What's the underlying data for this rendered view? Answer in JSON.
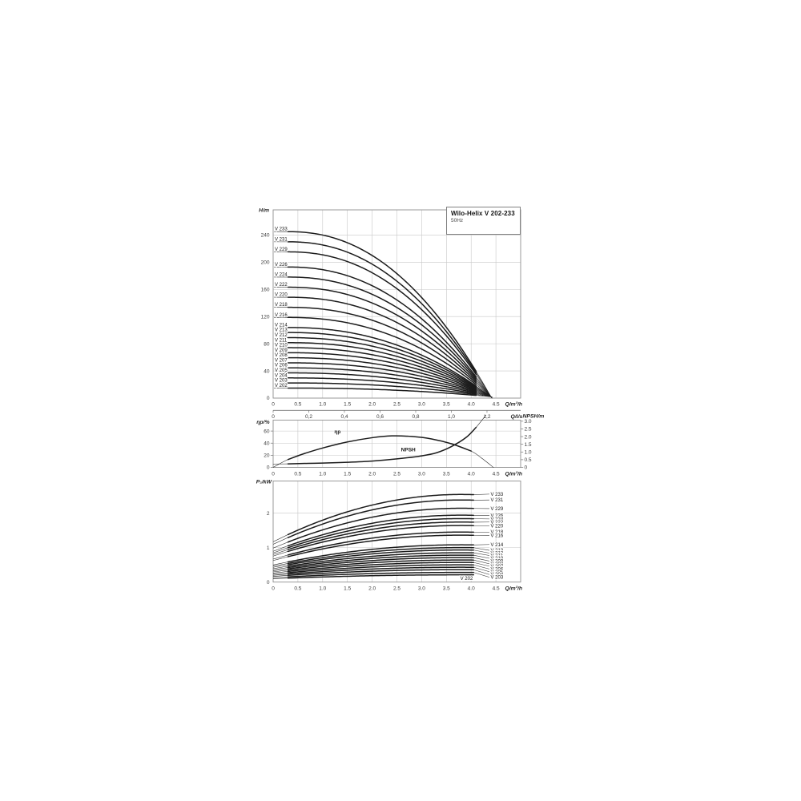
{
  "page": {
    "background": "#ffffff"
  },
  "title_box": {
    "title": "Wilo-Helix V 202-233",
    "subtitle": "50Hz"
  },
  "colors": {
    "curve": "#1b1b1b",
    "grid": "#c7c7c7",
    "axis_border": "#8f8f8f",
    "tick_text": "#3a3a3a",
    "label_text": "#161616",
    "background": "#ffffff"
  },
  "chart_data": [
    {
      "id": "head-curves",
      "type": "line",
      "title": "Wilo-Helix V 202-233",
      "subtitle": "50Hz",
      "ylabel": "H/m",
      "xlabel": "Q/m³/h",
      "xlabel2": "Q/l/s",
      "xlim": [
        0,
        5.0
      ],
      "ylim": [
        0,
        277
      ],
      "grid": true,
      "yticks": [
        {
          "v": 0,
          "label": "0"
        },
        {
          "v": 40,
          "label": "40"
        },
        {
          "v": 80,
          "label": "80"
        },
        {
          "v": 120,
          "label": "120"
        },
        {
          "v": 160,
          "label": "160"
        },
        {
          "v": 200,
          "label": "200"
        },
        {
          "v": 240,
          "label": "240"
        }
      ],
      "xticks": [
        {
          "v": 0,
          "label": "0"
        },
        {
          "v": 0.5,
          "label": "0.5"
        },
        {
          "v": 1,
          "label": "1.0"
        },
        {
          "v": 1.5,
          "label": "1.5"
        },
        {
          "v": 2,
          "label": "2.0"
        },
        {
          "v": 2.5,
          "label": "2.5"
        },
        {
          "v": 3,
          "label": "3.0"
        },
        {
          "v": 3.5,
          "label": "3.5"
        },
        {
          "v": 4,
          "label": "4.0"
        },
        {
          "v": 4.5,
          "label": "4.5"
        }
      ],
      "x2_unit_factor_m3h_per_ls": 3.6,
      "x2ticks": [
        {
          "v": 0,
          "label": "0"
        },
        {
          "v": 0.2,
          "label": "0,2"
        },
        {
          "v": 0.4,
          "label": "0,4"
        },
        {
          "v": 0.6,
          "label": "0,6"
        },
        {
          "v": 0.8,
          "label": "0,8"
        },
        {
          "v": 1.0,
          "label": "1,0"
        },
        {
          "v": 1.2,
          "label": "1,2"
        }
      ],
      "curve_model": {
        "q_start": 0.3,
        "q_thick_end": 4.1,
        "q_end": 4.42,
        "converge_q": 4.4,
        "converge_h": 2,
        "exponent": 2.2,
        "label_line_q0": 0.02
      },
      "series": [
        {
          "name": "V 233",
          "shutoff_head_m": 244.9
        },
        {
          "name": "V 231",
          "shutoff_head_m": 230.0
        },
        {
          "name": "V 229",
          "shutoff_head_m": 215.2
        },
        {
          "name": "V 226",
          "shutoff_head_m": 192.9
        },
        {
          "name": "V 224",
          "shutoff_head_m": 178.1
        },
        {
          "name": "V 222",
          "shutoff_head_m": 163.2
        },
        {
          "name": "V 220",
          "shutoff_head_m": 148.4
        },
        {
          "name": "V 218",
          "shutoff_head_m": 133.6
        },
        {
          "name": "V 216",
          "shutoff_head_m": 118.7
        },
        {
          "name": "V 214",
          "shutoff_head_m": 103.9
        },
        {
          "name": "V 213",
          "shutoff_head_m": 96.5
        },
        {
          "name": "V 212",
          "shutoff_head_m": 89.0
        },
        {
          "name": "V 211",
          "shutoff_head_m": 81.6
        },
        {
          "name": "V 210",
          "shutoff_head_m": 74.2
        },
        {
          "name": "V 209",
          "shutoff_head_m": 66.8
        },
        {
          "name": "V 208",
          "shutoff_head_m": 59.4
        },
        {
          "name": "V 207",
          "shutoff_head_m": 51.9
        },
        {
          "name": "V 206",
          "shutoff_head_m": 44.5
        },
        {
          "name": "V 205",
          "shutoff_head_m": 37.1
        },
        {
          "name": "V 204",
          "shutoff_head_m": 29.7
        },
        {
          "name": "V 203",
          "shutoff_head_m": 22.3
        },
        {
          "name": "V 202",
          "shutoff_head_m": 14.8
        }
      ]
    },
    {
      "id": "efficiency-npsh",
      "type": "line",
      "ylabel_left": "ηp/%",
      "ylabel_right": "NPSH/m",
      "xlabel": "Q/m³/h",
      "xlim": [
        0,
        5.0
      ],
      "ylim_left": [
        0,
        78
      ],
      "ylim_right": [
        0,
        3.07
      ],
      "grid": true,
      "yticks_left": [
        {
          "v": 0,
          "label": "0"
        },
        {
          "v": 20,
          "label": "20"
        },
        {
          "v": 40,
          "label": "40"
        },
        {
          "v": 60,
          "label": "60"
        }
      ],
      "yticks_right": [
        {
          "v": 0,
          "label": "0"
        },
        {
          "v": 0.5,
          "label": "0.5"
        },
        {
          "v": 1,
          "label": "1.0"
        },
        {
          "v": 1.5,
          "label": "1.5"
        },
        {
          "v": 2,
          "label": "2.0"
        },
        {
          "v": 2.5,
          "label": "2.5"
        },
        {
          "v": 3,
          "label": "3.0"
        }
      ],
      "xticks": [
        {
          "v": 0,
          "label": "0"
        },
        {
          "v": 0.5,
          "label": "0.5"
        },
        {
          "v": 1,
          "label": "1.0"
        },
        {
          "v": 1.5,
          "label": "1.5"
        },
        {
          "v": 2,
          "label": "2.0"
        },
        {
          "v": 2.5,
          "label": "2.5"
        },
        {
          "v": 3,
          "label": "3.0"
        },
        {
          "v": 3.5,
          "label": "3.5"
        },
        {
          "v": 4,
          "label": "4.0"
        },
        {
          "v": 4.5,
          "label": "4.5"
        }
      ],
      "series": [
        {
          "name": "ηp",
          "axis": "left",
          "points": [
            [
              0,
              0
            ],
            [
              0.3,
              13
            ],
            [
              0.6,
              22
            ],
            [
              1,
              32
            ],
            [
              1.5,
              42
            ],
            [
              2,
              49
            ],
            [
              2.4,
              52
            ],
            [
              2.8,
              51
            ],
            [
              3.2,
              47
            ],
            [
              3.6,
              39
            ],
            [
              4,
              27
            ],
            [
              4.2,
              16
            ],
            [
              4.45,
              0
            ]
          ],
          "thick": [
            0.3,
            4.0
          ],
          "label": {
            "q": 1.3,
            "v": 56
          }
        },
        {
          "name": "NPSH",
          "axis": "right",
          "points": [
            [
              0,
              0.22
            ],
            [
              0.3,
              0.23
            ],
            [
              0.7,
              0.26
            ],
            [
              1,
              0.28
            ],
            [
              1.5,
              0.33
            ],
            [
              2,
              0.41
            ],
            [
              2.5,
              0.55
            ],
            [
              3,
              0.75
            ],
            [
              3.3,
              0.95
            ],
            [
              3.6,
              1.35
            ],
            [
              3.9,
              1.95
            ],
            [
              4.1,
              2.6
            ],
            [
              4.3,
              3.4
            ]
          ],
          "thick": [
            0.3,
            4.1
          ],
          "label": {
            "q": 2.73,
            "v": 1.05
          }
        }
      ]
    },
    {
      "id": "power",
      "type": "line",
      "ylabel": "P₂/kW",
      "xlabel": "Q/m³/h",
      "xlim": [
        0,
        5.0
      ],
      "ylim": [
        0,
        2.93
      ],
      "grid": true,
      "yticks": [
        {
          "v": 0,
          "label": "0"
        },
        {
          "v": 1,
          "label": "1"
        },
        {
          "v": 2,
          "label": "2"
        }
      ],
      "xticks": [
        {
          "v": 0,
          "label": "0"
        },
        {
          "v": 0.5,
          "label": "0.5"
        },
        {
          "v": 1,
          "label": "1.0"
        },
        {
          "v": 1.5,
          "label": "1.5"
        },
        {
          "v": 2,
          "label": "2.0"
        },
        {
          "v": 2.5,
          "label": "2.5"
        },
        {
          "v": 3,
          "label": "3.0"
        },
        {
          "v": 3.5,
          "label": "3.5"
        },
        {
          "v": 4,
          "label": "4.0"
        },
        {
          "v": 4.5,
          "label": "4.5"
        }
      ],
      "curve_model": {
        "q_start": 0.3,
        "q_end": 4.05,
        "p0_fraction": 0.46,
        "q_peak": 3.8
      },
      "series": [
        {
          "name": "V 233",
          "p2_end_kw": 2.54,
          "label_kw": 2.55
        },
        {
          "name": "V 231",
          "p2_end_kw": 2.38,
          "label_kw": 2.38
        },
        {
          "name": "V 229",
          "p2_end_kw": 2.14,
          "label_kw": 2.13
        },
        {
          "name": "V 226",
          "p2_end_kw": 1.94,
          "label_kw": 1.93
        },
        {
          "name": "V 224",
          "p2_end_kw": 1.84,
          "label_kw": 1.83
        },
        {
          "name": "V 222",
          "p2_end_kw": 1.74,
          "label_kw": 1.74
        },
        {
          "name": "V 220",
          "p2_end_kw": 1.64,
          "label_kw": 1.63
        },
        {
          "name": "V 218",
          "p2_end_kw": 1.45,
          "label_kw": 1.45
        },
        {
          "name": "V 216",
          "p2_end_kw": 1.36,
          "label_kw": 1.35
        },
        {
          "name": "V 214",
          "p2_end_kw": 1.08,
          "label_kw": 1.09
        },
        {
          "name": "V 213",
          "p2_end_kw": 1.0,
          "label_kw": 0.92
        },
        {
          "name": "V 212",
          "p2_end_kw": 0.93,
          "label_kw": 0.84
        },
        {
          "name": "V 211",
          "p2_end_kw": 0.85,
          "label_kw": 0.77
        },
        {
          "name": "V 210",
          "p2_end_kw": 0.78,
          "label_kw": 0.69
        },
        {
          "name": "V 209",
          "p2_end_kw": 0.71,
          "label_kw": 0.61
        },
        {
          "name": "V 208",
          "p2_end_kw": 0.64,
          "label_kw": 0.53
        },
        {
          "name": "V 207",
          "p2_end_kw": 0.57,
          "label_kw": 0.46
        },
        {
          "name": "V 206",
          "p2_end_kw": 0.5,
          "label_kw": 0.38
        },
        {
          "name": "V 205",
          "p2_end_kw": 0.43,
          "label_kw": 0.3
        },
        {
          "name": "V 204",
          "p2_end_kw": 0.36,
          "label_kw": 0.22
        },
        {
          "name": "V 203",
          "p2_end_kw": 0.28,
          "label_kw": 0.14
        },
        {
          "name": "V 202",
          "p2_end_kw": 0.21,
          "label_kw": 0.11,
          "inline_label_q": 4.08
        }
      ]
    }
  ]
}
